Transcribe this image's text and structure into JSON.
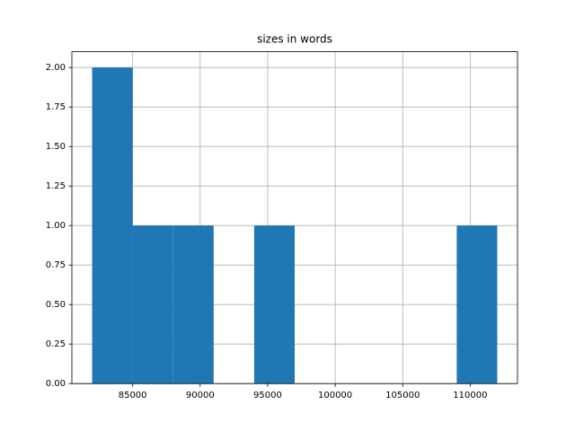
{
  "chart_data": {
    "type": "histogram",
    "title": "sizes in words",
    "bins": [
      82000,
      85000,
      88000,
      91000,
      94000,
      97000,
      100000,
      103000,
      106000,
      109000,
      112000
    ],
    "counts": [
      2,
      1,
      1,
      0,
      1,
      0,
      0,
      0,
      0,
      1
    ],
    "color": "#1f77b4",
    "xlim": [
      80500,
      113500
    ],
    "xticks": [
      85000,
      90000,
      95000,
      100000,
      105000,
      110000
    ],
    "ylim": [
      0,
      2.1
    ],
    "yticks": [
      {
        "value": 0,
        "label": "0.00"
      },
      {
        "value": 0.25,
        "label": "0.25"
      },
      {
        "value": 0.5,
        "label": "0.50"
      },
      {
        "value": 0.75,
        "label": "0.75"
      },
      {
        "value": 1,
        "label": "1.00"
      },
      {
        "value": 1.25,
        "label": "1.25"
      },
      {
        "value": 1.5,
        "label": "1.50"
      },
      {
        "value": 1.75,
        "label": "1.75"
      },
      {
        "value": 2,
        "label": "2.00"
      }
    ],
    "grid": true
  }
}
